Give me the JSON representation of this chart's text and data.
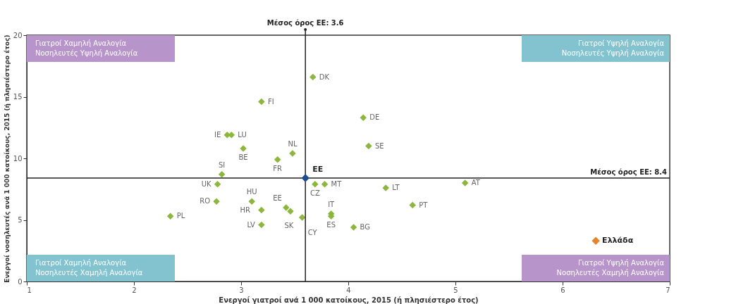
{
  "chart_data": {
    "type": "scatter",
    "xlabel": "Ενεργοί γιατροί ανά 1 000 κατοίκους, 2015 (ή πλησιέστερο έτος)",
    "ylabel": "Ενεργοί νοσηλευτές ανά 1 000 κατοίκους, 2015 (ή πλησιέστερο έτος)",
    "xlim": [
      1,
      7
    ],
    "ylim": [
      0,
      20
    ],
    "xticks": [
      1,
      2,
      3,
      4,
      5,
      6,
      7
    ],
    "yticks": [
      0,
      5,
      10,
      15,
      20
    ],
    "grid": false,
    "marker": "diamond",
    "series": [
      {
        "color": "#8cb63c",
        "x": [
          3.67,
          3.19,
          4.14,
          2.87,
          2.91,
          4.19,
          3.02,
          3.48,
          3.34,
          2.82,
          2.78,
          3.69,
          3.78,
          5.09,
          4.35,
          2.77,
          3.1,
          4.6,
          3.42,
          3.19,
          3.46,
          3.84,
          3.84,
          2.34,
          3.57,
          3.19,
          4.05
        ],
        "values": [
          16.6,
          14.6,
          13.3,
          11.9,
          11.9,
          11.0,
          10.8,
          10.4,
          9.9,
          8.7,
          7.9,
          7.9,
          7.9,
          8.0,
          7.6,
          6.5,
          6.5,
          6.2,
          6.0,
          5.8,
          5.7,
          5.5,
          5.3,
          5.3,
          5.2,
          4.6,
          4.4
        ]
      },
      {
        "color": "#1f4e8c",
        "x": [
          3.6
        ],
        "values": [
          8.4
        ]
      },
      {
        "color": "#e8832a",
        "x": [
          6.31
        ],
        "values": [
          3.3
        ]
      }
    ],
    "ref_lines": [
      {
        "axis": "x",
        "value": 3.6,
        "label": "Μέσος όρος ΕΕ: 3.6"
      },
      {
        "axis": "y",
        "value": 8.4,
        "label": "Μέσος όρος ΕΕ: 8.4"
      }
    ],
    "annotations": [
      {
        "text": "DK",
        "x": 3.67,
        "y": 16.6
      },
      {
        "text": "FI",
        "x": 3.19,
        "y": 14.6
      },
      {
        "text": "DE",
        "x": 4.14,
        "y": 13.3
      },
      {
        "text": "IE",
        "x": 2.87,
        "y": 11.9
      },
      {
        "text": "LU",
        "x": 2.91,
        "y": 11.9
      },
      {
        "text": "SE",
        "x": 4.19,
        "y": 11.0
      },
      {
        "text": "BE",
        "x": 3.02,
        "y": 10.8
      },
      {
        "text": "NL",
        "x": 3.48,
        "y": 10.4
      },
      {
        "text": "FR",
        "x": 3.34,
        "y": 9.9
      },
      {
        "text": "SI",
        "x": 2.82,
        "y": 8.7
      },
      {
        "text": "UK",
        "x": 2.78,
        "y": 7.9
      },
      {
        "text": "CZ",
        "x": 3.69,
        "y": 7.9
      },
      {
        "text": "MT",
        "x": 3.78,
        "y": 7.9
      },
      {
        "text": "AT",
        "x": 5.09,
        "y": 8.0
      },
      {
        "text": "LT",
        "x": 4.35,
        "y": 7.6
      },
      {
        "text": "RO",
        "x": 2.77,
        "y": 6.5
      },
      {
        "text": "HU",
        "x": 3.1,
        "y": 6.5
      },
      {
        "text": "PT",
        "x": 4.6,
        "y": 6.2
      },
      {
        "text": "EE",
        "x": 3.42,
        "y": 6.0
      },
      {
        "text": "HR",
        "x": 3.19,
        "y": 5.8
      },
      {
        "text": "SK",
        "x": 3.46,
        "y": 5.7
      },
      {
        "text": "IT",
        "x": 3.84,
        "y": 5.5
      },
      {
        "text": "ES",
        "x": 3.84,
        "y": 5.3
      },
      {
        "text": "PL",
        "x": 2.34,
        "y": 5.3
      },
      {
        "text": "CY",
        "x": 3.57,
        "y": 5.2
      },
      {
        "text": "LV",
        "x": 3.19,
        "y": 4.6
      },
      {
        "text": "BG",
        "x": 4.05,
        "y": 4.4
      },
      {
        "text": "EE",
        "x": 3.6,
        "y": 8.4
      },
      {
        "text": "Ελλάδα",
        "x": 6.31,
        "y": 3.3
      },
      "Γιατροί Χαμηλή Αναλογία\nΝοσηλευτές Υψηλή Αναλογία",
      "Γιατροί Υψηλή Αναλογία\nΝοσηλευτές Υψηλή Αναλογία",
      "Γιατροί Χαμηλή Αναλογία\nΝοσηλευτές Χαμηλή Αναλογία",
      "Γιατροί Υψηλή Αναλογία\nΝοσηλευτές Χαμηλή Αναλογία"
    ]
  }
}
